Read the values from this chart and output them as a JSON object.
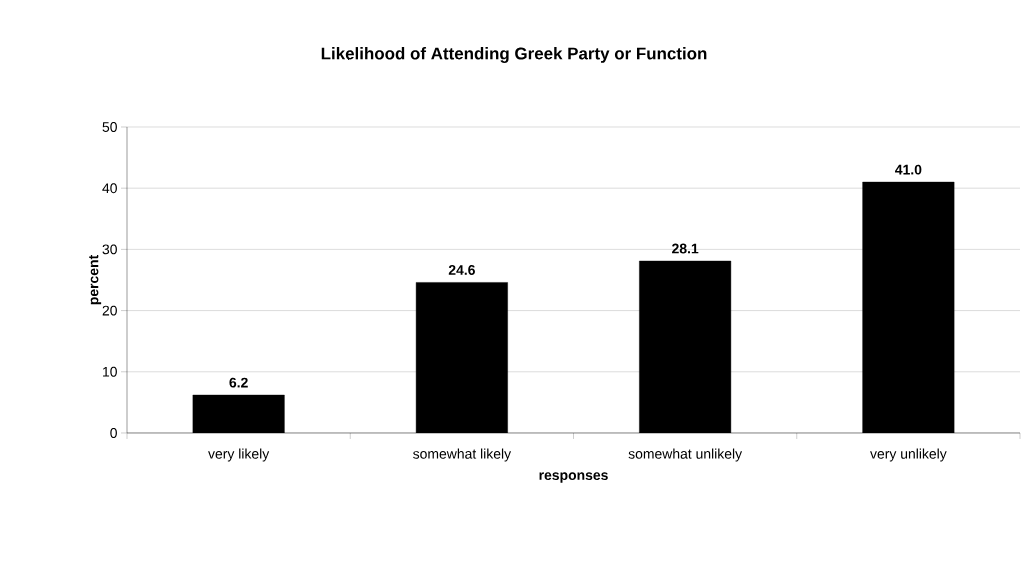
{
  "chart_data": {
    "type": "bar",
    "title": "Likelihood of Attending Greek Party or Function",
    "xlabel": "responses",
    "ylabel": "percent",
    "categories": [
      "very likely",
      "somewhat likely",
      "somewhat unlikely",
      "very unlikely"
    ],
    "values": [
      6.2,
      24.6,
      28.1,
      41.0
    ],
    "color": "#000000",
    "value_labels": [
      "6.2",
      "24.6",
      "28.1",
      "41.0"
    ],
    "ylim": [
      0,
      50
    ],
    "yticks": [
      0,
      10,
      20,
      30,
      40,
      50
    ],
    "grid": "y"
  }
}
